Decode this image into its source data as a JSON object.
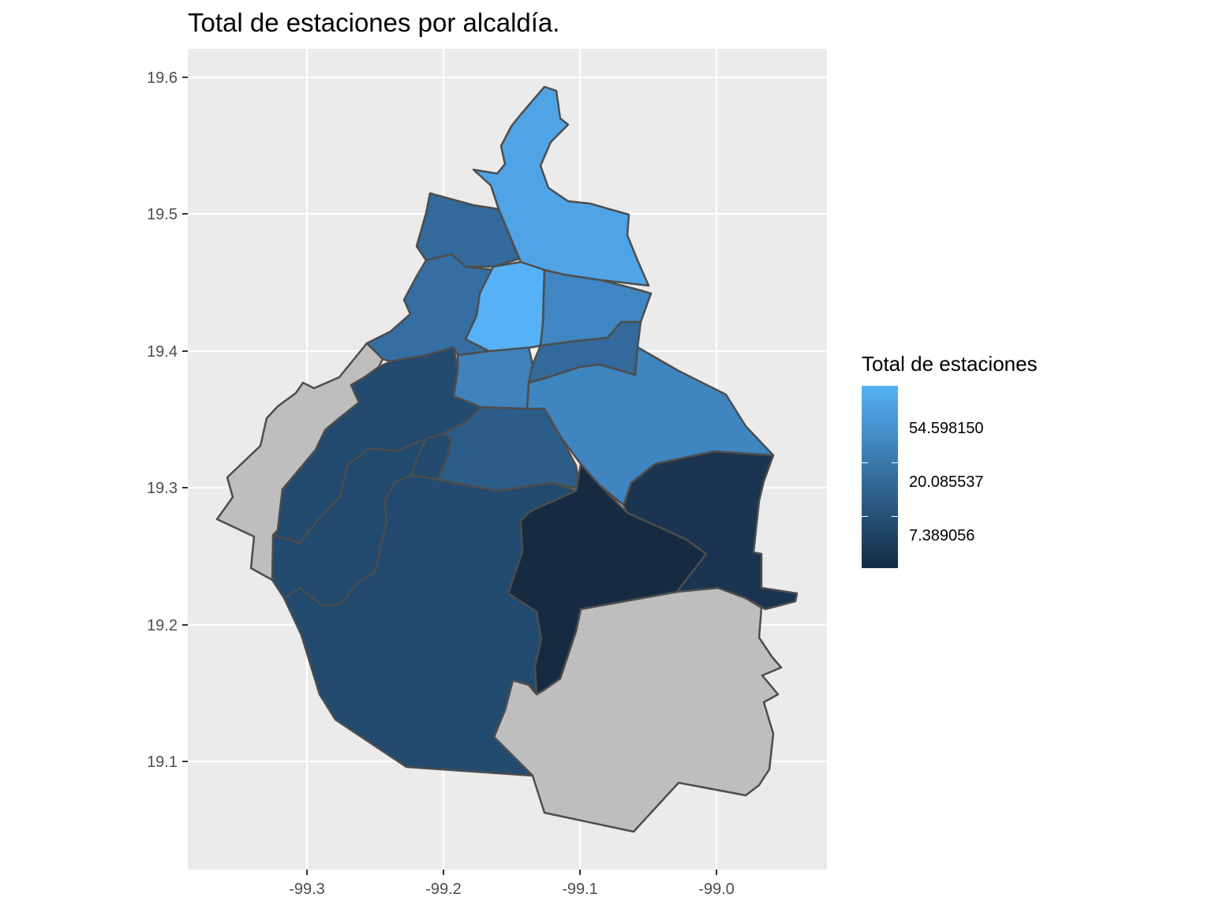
{
  "title": "Total de estaciones por alcaldía.",
  "x_axis": {
    "ticks": [
      "-99.3",
      "-99.2",
      "-99.1",
      "-99.0"
    ]
  },
  "y_axis": {
    "ticks": [
      "19.1",
      "19.2",
      "19.3",
      "19.4",
      "19.5",
      "19.6"
    ]
  },
  "legend": {
    "title": "Total de estaciones",
    "labels": [
      "54.598150",
      "20.085537",
      "7.389056"
    ],
    "low_color": "#132B43",
    "high_color": "#56B1F7",
    "na_color": "#BEBEBE"
  },
  "colors": {
    "panel_background": "#EBEBEB",
    "grid": "#FFFFFF",
    "border": "#4D4D4D"
  },
  "chart_data": {
    "type": "choropleth",
    "title": "Total de estaciones por alcaldía.",
    "legend_title": "Total de estaciones",
    "legend_breaks": [
      7.389056,
      20.085537,
      54.59815
    ],
    "xlim": [
      -99.39,
      -98.92
    ],
    "ylim": [
      19.03,
      19.62
    ],
    "x_ticks": [
      -99.3,
      -99.2,
      -99.1,
      -99.0
    ],
    "y_ticks": [
      19.1,
      19.2,
      19.3,
      19.4,
      19.5,
      19.6
    ],
    "grid": true,
    "legend_position": "right"
  }
}
